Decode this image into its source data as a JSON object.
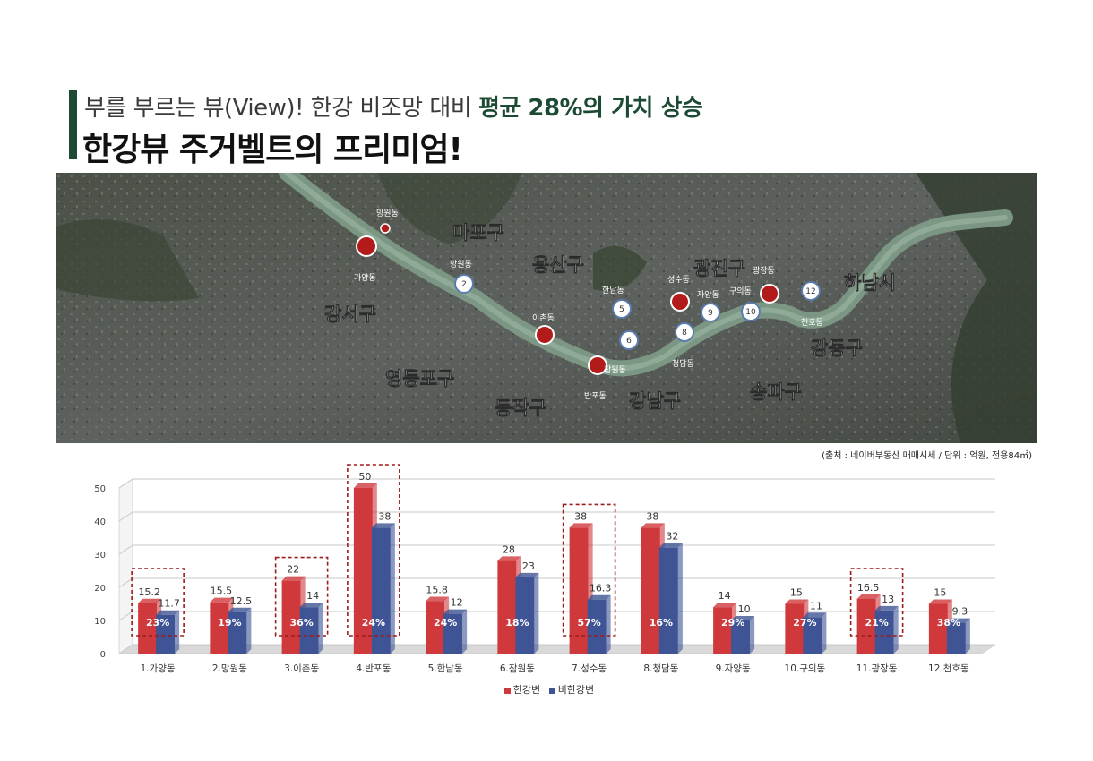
{
  "header": {
    "subtitle_plain": "부를 부르는 뷰(View)! 한강 비조망 대비 ",
    "subtitle_highlight": "평균 28%의 가치 상승",
    "title": "한강뷰 주거벨트의 프리미엄!"
  },
  "map": {
    "districts": [
      "마포구",
      "용산구",
      "광진구",
      "하남시",
      "강서구",
      "영등포구",
      "동작구",
      "강남구",
      "송파구",
      "강동구"
    ],
    "red_pins": [
      "가양동",
      "망원동",
      "이촌동",
      "반포동",
      "성수동",
      "광장동"
    ],
    "blue_pins": [
      {
        "num": "2",
        "label": "망원동"
      },
      {
        "num": "5",
        "label": "한남동"
      },
      {
        "num": "6",
        "label": "잠원동"
      },
      {
        "num": "8",
        "label": "청담동"
      },
      {
        "num": "9",
        "label": "자양동"
      },
      {
        "num": "10",
        "label": "구의동"
      },
      {
        "num": "12",
        "label": "천호동"
      }
    ]
  },
  "source_note": "(출처 : 네이버부동산 매매시세 / 단위 : 억원, 전용84㎡)",
  "colors": {
    "accent_green": "#1d4a32",
    "han_river": "#d0393c",
    "non_han_river": "#3e5494",
    "highlight_box": "#9b1c1c"
  },
  "chart_data": {
    "type": "bar",
    "categories": [
      "1.가양동",
      "2.망원동",
      "3.이촌동",
      "4.반포동",
      "5.한남동",
      "6.잠원동",
      "7.성수동",
      "8.청담동",
      "9.자양동",
      "10.구의동",
      "11.광장동",
      "12.천호동"
    ],
    "series": [
      {
        "name": "한강변",
        "values": [
          15.2,
          15.5,
          22,
          50,
          15.8,
          28,
          38,
          38,
          14,
          15,
          16.5,
          15
        ],
        "labels": [
          "15.2",
          "15.5",
          "22",
          "50",
          "15.8",
          "28",
          "38",
          "38",
          "14",
          "15",
          "16.5",
          "15"
        ]
      },
      {
        "name": "비한강변",
        "values": [
          11.7,
          12.5,
          14,
          38,
          12,
          23,
          16.3,
          32,
          10,
          11,
          13,
          9.3
        ],
        "labels": [
          "11.7",
          "12.5",
          "14",
          "38",
          "12",
          "23",
          "16.3",
          "32",
          "10",
          "11",
          "13",
          "9.3"
        ]
      }
    ],
    "premium_labels": [
      "23%",
      "19%",
      "36%",
      "24%",
      "24%",
      "18%",
      "57%",
      "16%",
      "29%",
      "27%",
      "21%",
      "38%"
    ],
    "highlighted_categories": [
      "1.가양동",
      "3.이촌동",
      "4.반포동",
      "7.성수동",
      "11.광장동"
    ],
    "y_ticks": [
      "0",
      "10",
      "20",
      "30",
      "40",
      "50"
    ],
    "ylim": [
      0,
      50
    ],
    "grid": true,
    "legend_position": "bottom-center"
  }
}
